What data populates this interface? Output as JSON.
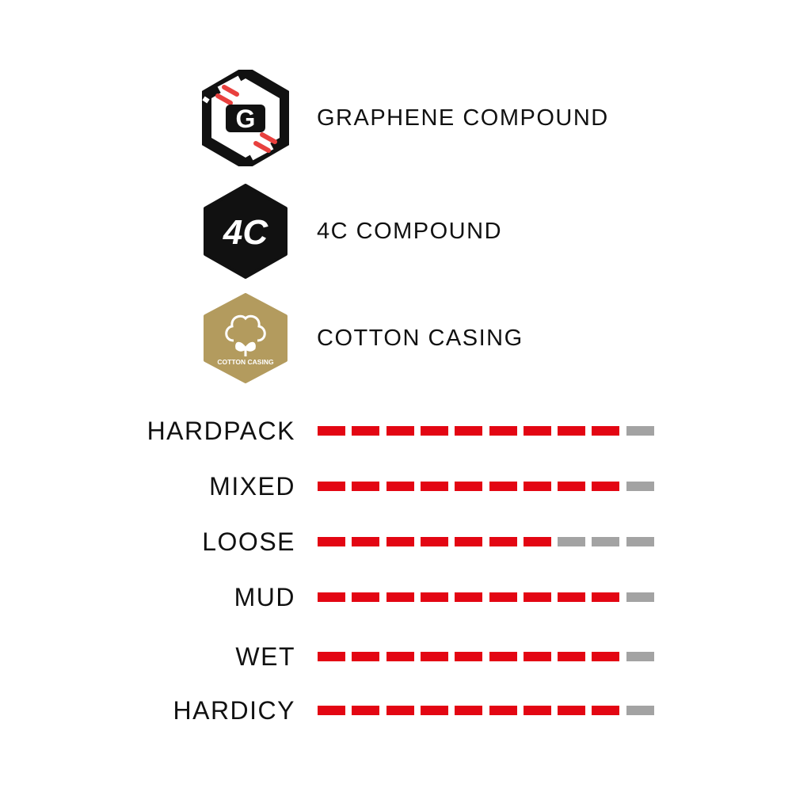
{
  "features": [
    {
      "icon": "graphene-g-icon",
      "label": "GRAPHENE COMPOUND"
    },
    {
      "icon": "4c-compound-icon",
      "label": "4C COMPOUND",
      "badge_text": "4C"
    },
    {
      "icon": "cotton-casing-icon",
      "label": "COTTON CASING",
      "badge_text": "COTTON CASING"
    }
  ],
  "ratings_max": 10,
  "ratings": [
    {
      "label": "HARDPACK",
      "value": 9
    },
    {
      "label": "MIXED",
      "value": 9
    },
    {
      "label": "LOOSE",
      "value": 7
    },
    {
      "label": "MUD",
      "value": 9
    },
    {
      "label": "WET",
      "value": 9
    },
    {
      "label": "HARDICY",
      "value": 9
    }
  ],
  "colors": {
    "filled": "#e30613",
    "empty": "#a3a3a3",
    "accent_red": "#e8403e",
    "gold": "#b39b5e",
    "black": "#111111"
  }
}
